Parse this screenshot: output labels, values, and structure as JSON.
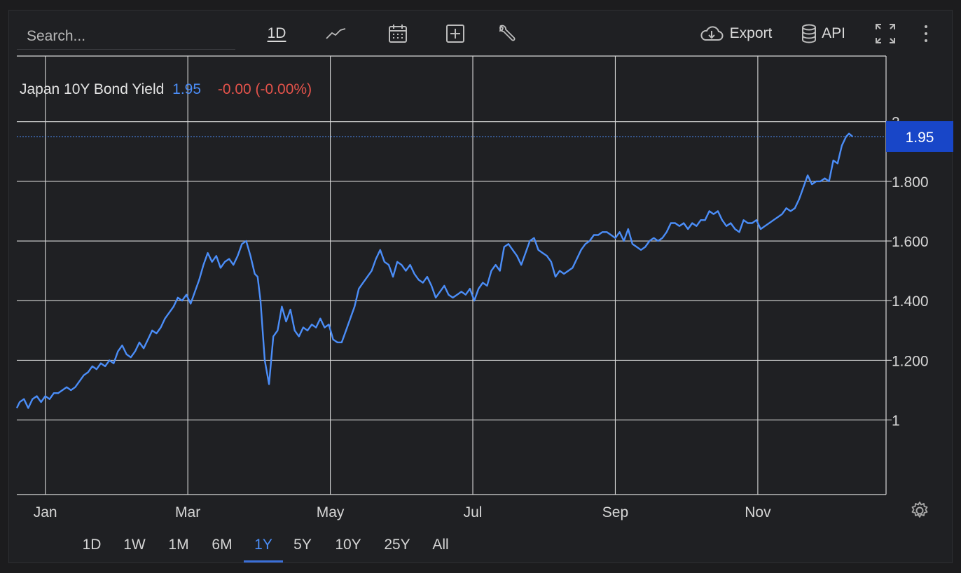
{
  "search": {
    "placeholder": "Search..."
  },
  "toolbar": {
    "interval_label": "1D",
    "export_label": "Export",
    "api_label": "API",
    "icons": [
      "line-chart-icon",
      "calendar-icon",
      "add-indicator-icon",
      "wrench-icon",
      "cloud-download-icon",
      "database-icon",
      "fullscreen-icon",
      "more-vertical-icon",
      "settings-icon"
    ]
  },
  "legend": {
    "name": "Japan 10Y Bond Yield",
    "value": "1.95",
    "change": "-0.00 (-0.00%)"
  },
  "price_tag": "1.95",
  "range_buttons": [
    "1D",
    "1W",
    "1M",
    "6M",
    "1Y",
    "5Y",
    "10Y",
    "25Y",
    "All"
  ],
  "active_range": "1Y",
  "colors": {
    "background": "#1f2023",
    "line": "#4b8df7",
    "negative": "#e5534b",
    "grid": "#d8d8d8",
    "tag": "#1846c8"
  },
  "chart_data": {
    "type": "line",
    "title": "Japan 10Y Bond Yield",
    "xlabel": "",
    "ylabel": "",
    "y_ticks": [
      "1",
      "1.200",
      "1.400",
      "1.600",
      "1.800",
      "2"
    ],
    "y_tick_values": [
      1.0,
      1.2,
      1.4,
      1.6,
      1.8,
      2.0
    ],
    "x_ticks": [
      "Jan",
      "Mar",
      "May",
      "Jul",
      "Sep",
      "Nov"
    ],
    "x_tick_months": [
      1,
      3,
      5,
      7,
      9,
      11
    ],
    "ylim": [
      0.75,
      2.22
    ],
    "xlim_months": [
      0.6,
      12.8
    ],
    "last_value": 1.95,
    "grid": true,
    "series": [
      {
        "points": [
          [
            0.6,
            1.04
          ],
          [
            0.64,
            1.06
          ],
          [
            0.7,
            1.07
          ],
          [
            0.76,
            1.04
          ],
          [
            0.82,
            1.07
          ],
          [
            0.88,
            1.08
          ],
          [
            0.94,
            1.06
          ],
          [
            1.0,
            1.08
          ],
          [
            1.06,
            1.07
          ],
          [
            1.12,
            1.09
          ],
          [
            1.18,
            1.09
          ],
          [
            1.24,
            1.1
          ],
          [
            1.3,
            1.11
          ],
          [
            1.36,
            1.1
          ],
          [
            1.42,
            1.11
          ],
          [
            1.48,
            1.13
          ],
          [
            1.54,
            1.15
          ],
          [
            1.6,
            1.16
          ],
          [
            1.66,
            1.18
          ],
          [
            1.72,
            1.17
          ],
          [
            1.78,
            1.19
          ],
          [
            1.84,
            1.18
          ],
          [
            1.9,
            1.2
          ],
          [
            1.96,
            1.19
          ],
          [
            2.02,
            1.23
          ],
          [
            2.08,
            1.25
          ],
          [
            2.14,
            1.22
          ],
          [
            2.2,
            1.21
          ],
          [
            2.26,
            1.23
          ],
          [
            2.32,
            1.26
          ],
          [
            2.38,
            1.24
          ],
          [
            2.44,
            1.27
          ],
          [
            2.5,
            1.3
          ],
          [
            2.56,
            1.29
          ],
          [
            2.62,
            1.31
          ],
          [
            2.68,
            1.34
          ],
          [
            2.74,
            1.36
          ],
          [
            2.8,
            1.38
          ],
          [
            2.86,
            1.41
          ],
          [
            2.92,
            1.4
          ],
          [
            2.98,
            1.42
          ],
          [
            3.04,
            1.39
          ],
          [
            3.1,
            1.43
          ],
          [
            3.16,
            1.47
          ],
          [
            3.22,
            1.52
          ],
          [
            3.28,
            1.56
          ],
          [
            3.34,
            1.53
          ],
          [
            3.4,
            1.55
          ],
          [
            3.46,
            1.51
          ],
          [
            3.52,
            1.53
          ],
          [
            3.58,
            1.54
          ],
          [
            3.64,
            1.52
          ],
          [
            3.7,
            1.55
          ],
          [
            3.76,
            1.59
          ],
          [
            3.82,
            1.6
          ],
          [
            3.88,
            1.55
          ],
          [
            3.94,
            1.49
          ],
          [
            3.98,
            1.48
          ],
          [
            4.02,
            1.4
          ],
          [
            4.08,
            1.2
          ],
          [
            4.14,
            1.12
          ],
          [
            4.2,
            1.28
          ],
          [
            4.26,
            1.3
          ],
          [
            4.32,
            1.38
          ],
          [
            4.38,
            1.33
          ],
          [
            4.44,
            1.37
          ],
          [
            4.5,
            1.3
          ],
          [
            4.56,
            1.28
          ],
          [
            4.62,
            1.31
          ],
          [
            4.68,
            1.3
          ],
          [
            4.74,
            1.32
          ],
          [
            4.8,
            1.31
          ],
          [
            4.86,
            1.34
          ],
          [
            4.92,
            1.31
          ],
          [
            4.98,
            1.32
          ],
          [
            5.04,
            1.27
          ],
          [
            5.1,
            1.26
          ],
          [
            5.16,
            1.26
          ],
          [
            5.22,
            1.3
          ],
          [
            5.28,
            1.34
          ],
          [
            5.34,
            1.38
          ],
          [
            5.4,
            1.44
          ],
          [
            5.46,
            1.46
          ],
          [
            5.52,
            1.48
          ],
          [
            5.58,
            1.5
          ],
          [
            5.64,
            1.54
          ],
          [
            5.7,
            1.57
          ],
          [
            5.76,
            1.53
          ],
          [
            5.82,
            1.52
          ],
          [
            5.88,
            1.48
          ],
          [
            5.94,
            1.53
          ],
          [
            6.0,
            1.52
          ],
          [
            6.06,
            1.5
          ],
          [
            6.12,
            1.52
          ],
          [
            6.18,
            1.49
          ],
          [
            6.24,
            1.47
          ],
          [
            6.3,
            1.46
          ],
          [
            6.36,
            1.48
          ],
          [
            6.42,
            1.45
          ],
          [
            6.48,
            1.41
          ],
          [
            6.54,
            1.43
          ],
          [
            6.6,
            1.45
          ],
          [
            6.66,
            1.42
          ],
          [
            6.72,
            1.41
          ],
          [
            6.78,
            1.42
          ],
          [
            6.84,
            1.43
          ],
          [
            6.9,
            1.42
          ],
          [
            6.96,
            1.44
          ],
          [
            7.02,
            1.4
          ],
          [
            7.08,
            1.44
          ],
          [
            7.14,
            1.46
          ],
          [
            7.2,
            1.45
          ],
          [
            7.26,
            1.5
          ],
          [
            7.32,
            1.52
          ],
          [
            7.38,
            1.5
          ],
          [
            7.44,
            1.58
          ],
          [
            7.5,
            1.59
          ],
          [
            7.56,
            1.57
          ],
          [
            7.62,
            1.55
          ],
          [
            7.68,
            1.52
          ],
          [
            7.74,
            1.56
          ],
          [
            7.8,
            1.6
          ],
          [
            7.86,
            1.61
          ],
          [
            7.92,
            1.57
          ],
          [
            7.98,
            1.56
          ],
          [
            8.04,
            1.55
          ],
          [
            8.1,
            1.53
          ],
          [
            8.16,
            1.48
          ],
          [
            8.22,
            1.5
          ],
          [
            8.28,
            1.49
          ],
          [
            8.34,
            1.5
          ],
          [
            8.4,
            1.51
          ],
          [
            8.46,
            1.54
          ],
          [
            8.52,
            1.57
          ],
          [
            8.58,
            1.59
          ],
          [
            8.64,
            1.6
          ],
          [
            8.7,
            1.62
          ],
          [
            8.76,
            1.62
          ],
          [
            8.82,
            1.63
          ],
          [
            8.88,
            1.63
          ],
          [
            8.94,
            1.62
          ],
          [
            9.0,
            1.61
          ],
          [
            9.06,
            1.63
          ],
          [
            9.12,
            1.6
          ],
          [
            9.18,
            1.64
          ],
          [
            9.24,
            1.59
          ],
          [
            9.3,
            1.58
          ],
          [
            9.36,
            1.57
          ],
          [
            9.42,
            1.58
          ],
          [
            9.48,
            1.6
          ],
          [
            9.54,
            1.61
          ],
          [
            9.6,
            1.6
          ],
          [
            9.66,
            1.61
          ],
          [
            9.72,
            1.63
          ],
          [
            9.78,
            1.66
          ],
          [
            9.84,
            1.66
          ],
          [
            9.9,
            1.65
          ],
          [
            9.96,
            1.66
          ],
          [
            10.02,
            1.64
          ],
          [
            10.08,
            1.66
          ],
          [
            10.14,
            1.65
          ],
          [
            10.2,
            1.67
          ],
          [
            10.26,
            1.67
          ],
          [
            10.32,
            1.7
          ],
          [
            10.38,
            1.69
          ],
          [
            10.44,
            1.7
          ],
          [
            10.5,
            1.67
          ],
          [
            10.56,
            1.65
          ],
          [
            10.62,
            1.66
          ],
          [
            10.68,
            1.64
          ],
          [
            10.74,
            1.63
          ],
          [
            10.8,
            1.67
          ],
          [
            10.86,
            1.66
          ],
          [
            10.92,
            1.66
          ],
          [
            10.98,
            1.67
          ],
          [
            11.04,
            1.64
          ],
          [
            11.1,
            1.65
          ],
          [
            11.16,
            1.66
          ],
          [
            11.22,
            1.67
          ],
          [
            11.28,
            1.68
          ],
          [
            11.34,
            1.69
          ],
          [
            11.4,
            1.71
          ],
          [
            11.46,
            1.7
          ],
          [
            11.52,
            1.71
          ],
          [
            11.58,
            1.74
          ],
          [
            11.64,
            1.78
          ],
          [
            11.7,
            1.82
          ],
          [
            11.76,
            1.79
          ],
          [
            11.82,
            1.8
          ],
          [
            11.88,
            1.8
          ],
          [
            11.94,
            1.81
          ],
          [
            12.0,
            1.8
          ],
          [
            12.06,
            1.87
          ],
          [
            12.12,
            1.86
          ],
          [
            12.18,
            1.92
          ],
          [
            12.24,
            1.95
          ],
          [
            12.28,
            1.96
          ],
          [
            12.33,
            1.95
          ]
        ]
      }
    ]
  }
}
